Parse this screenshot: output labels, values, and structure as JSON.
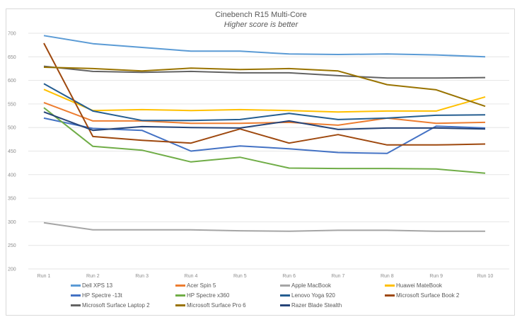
{
  "chart_data": {
    "type": "line",
    "title": "Cinebench R15 Multi-Core",
    "subtitle": "Higher score is better",
    "xlabel": "",
    "ylabel": "",
    "categories": [
      "Run 1",
      "Run 2",
      "Run 3",
      "Run 4",
      "Run 5",
      "Run 6",
      "Run 7",
      "Run 8",
      "Run 9",
      "Run 10"
    ],
    "ylim": [
      200,
      700
    ],
    "yticks": [
      200,
      250,
      300,
      350,
      400,
      450,
      500,
      550,
      600,
      650,
      700
    ],
    "grid": true,
    "legend_position": "bottom",
    "series": [
      {
        "name": "Dell XPS 13",
        "color": "#5b9bd5",
        "values": [
          695,
          678,
          670,
          662,
          662,
          656,
          655,
          656,
          654,
          650
        ]
      },
      {
        "name": "Acer Spin 5",
        "color": "#ed7d31",
        "values": [
          553,
          514,
          514,
          509,
          509,
          511,
          505,
          520,
          509,
          511
        ]
      },
      {
        "name": "Apple MacBook",
        "color": "#a5a5a5",
        "values": [
          298,
          283,
          283,
          283,
          281,
          280,
          282,
          282,
          280,
          280
        ]
      },
      {
        "name": "Huawei MateBook",
        "color": "#ffc000",
        "values": [
          581,
          536,
          538,
          536,
          538,
          536,
          533,
          535,
          535,
          565
        ]
      },
      {
        "name": "HP Spectre -13t",
        "color": "#4472c4",
        "values": [
          520,
          498,
          494,
          450,
          461,
          455,
          447,
          445,
          503,
          499
        ]
      },
      {
        "name": "HP Spectre x360",
        "color": "#70ad47",
        "values": [
          542,
          460,
          452,
          427,
          437,
          414,
          413,
          413,
          412,
          403
        ]
      },
      {
        "name": "Lenovo Yoga 920",
        "color": "#255e91",
        "values": [
          593,
          535,
          515,
          515,
          517,
          530,
          517,
          520,
          526,
          527
        ]
      },
      {
        "name": "Microsoft Surface Book 2",
        "color": "#9e480e",
        "values": [
          679,
          481,
          473,
          467,
          497,
          467,
          485,
          463,
          463,
          465
        ]
      },
      {
        "name": "Microsoft Surface Laptop 2",
        "color": "#636363",
        "values": [
          630,
          619,
          617,
          619,
          616,
          616,
          610,
          605,
          605,
          606
        ]
      },
      {
        "name": "Microsoft Surface Pro 6",
        "color": "#997300",
        "values": [
          628,
          625,
          620,
          626,
          623,
          625,
          620,
          591,
          580,
          545
        ]
      },
      {
        "name": "Razer Blade Stealth",
        "color": "#264478",
        "values": [
          533,
          494,
          502,
          500,
          499,
          514,
          496,
          499,
          499,
          497
        ]
      }
    ]
  }
}
